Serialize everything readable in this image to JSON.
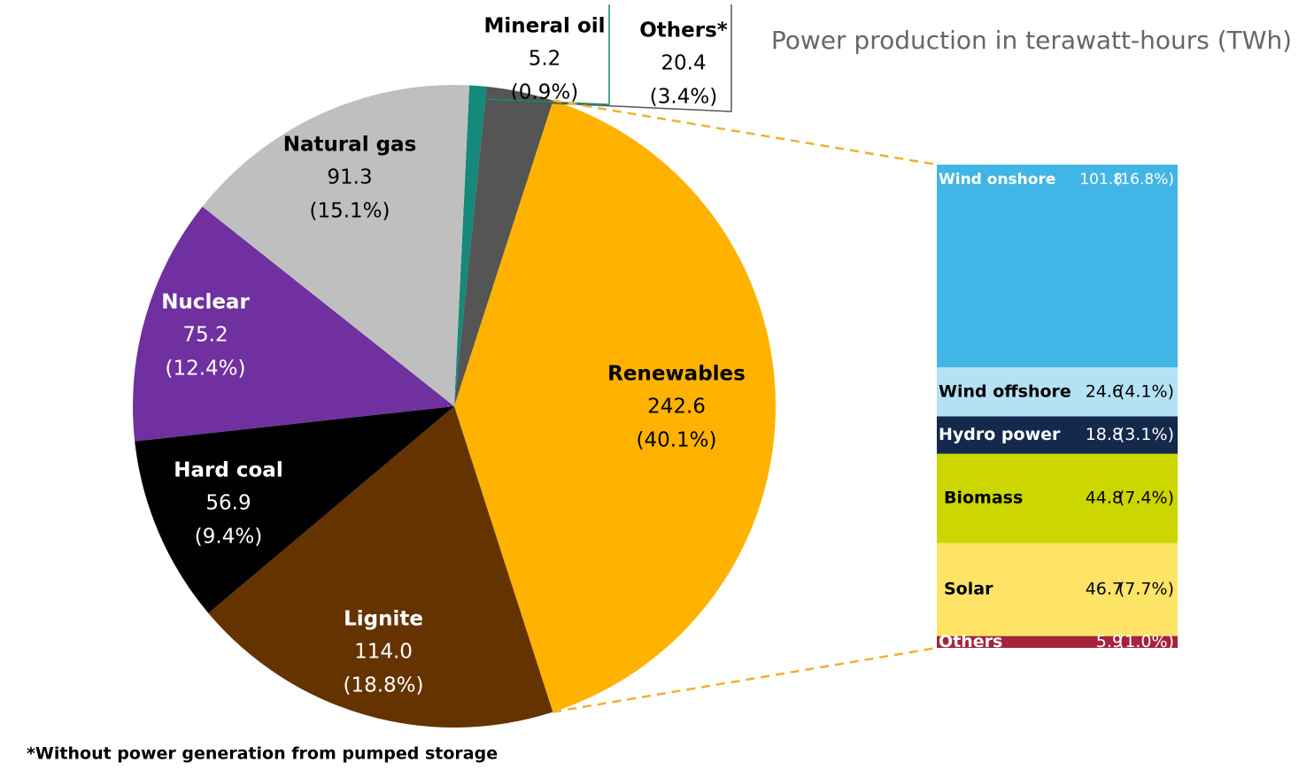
{
  "chart_data": {
    "type": "pie",
    "title": "Power production in terawatt-hours (TWh)",
    "note": "*Without power generation from pumped storage",
    "categories": [
      "Mineral oil",
      "Others*",
      "Renewables",
      "Lignite",
      "Hard coal",
      "Nuclear",
      "Natural gas"
    ],
    "values": [
      5.2,
      20.4,
      242.6,
      114.0,
      56.9,
      75.2,
      91.3
    ],
    "value_labels": [
      "5.2",
      "20.4",
      "242.6",
      "114.0",
      "56.9",
      "75.2",
      "91.3"
    ],
    "percentage_labels": [
      "(0.9%)",
      "(3.4%)",
      "(40.1%)",
      "(18.8%)",
      "(9.4%)",
      "(12.4%)",
      "(15.1%)"
    ],
    "colors": [
      "#15897a",
      "#555555",
      "#ffb300",
      "#653300",
      "#000000",
      "#7030a0",
      "#bfbfbf"
    ],
    "breakdown": {
      "categories": [
        "Wind onshore",
        "Wind offshore",
        "Hydro power",
        "Biomass",
        "Solar",
        "Others"
      ],
      "values": [
        101.8,
        24.6,
        18.8,
        44.8,
        46.7,
        5.9
      ],
      "percentage_labels": [
        "(16.8%)",
        "(4.1%)",
        "(3.1%)",
        "(7.4%)",
        "(7.7%)",
        "(1.0%)"
      ],
      "colors": [
        "#41b6e6",
        "#b5e1f5",
        "#14294b",
        "#ccd600",
        "#fde467",
        "#a3243b"
      ]
    }
  }
}
